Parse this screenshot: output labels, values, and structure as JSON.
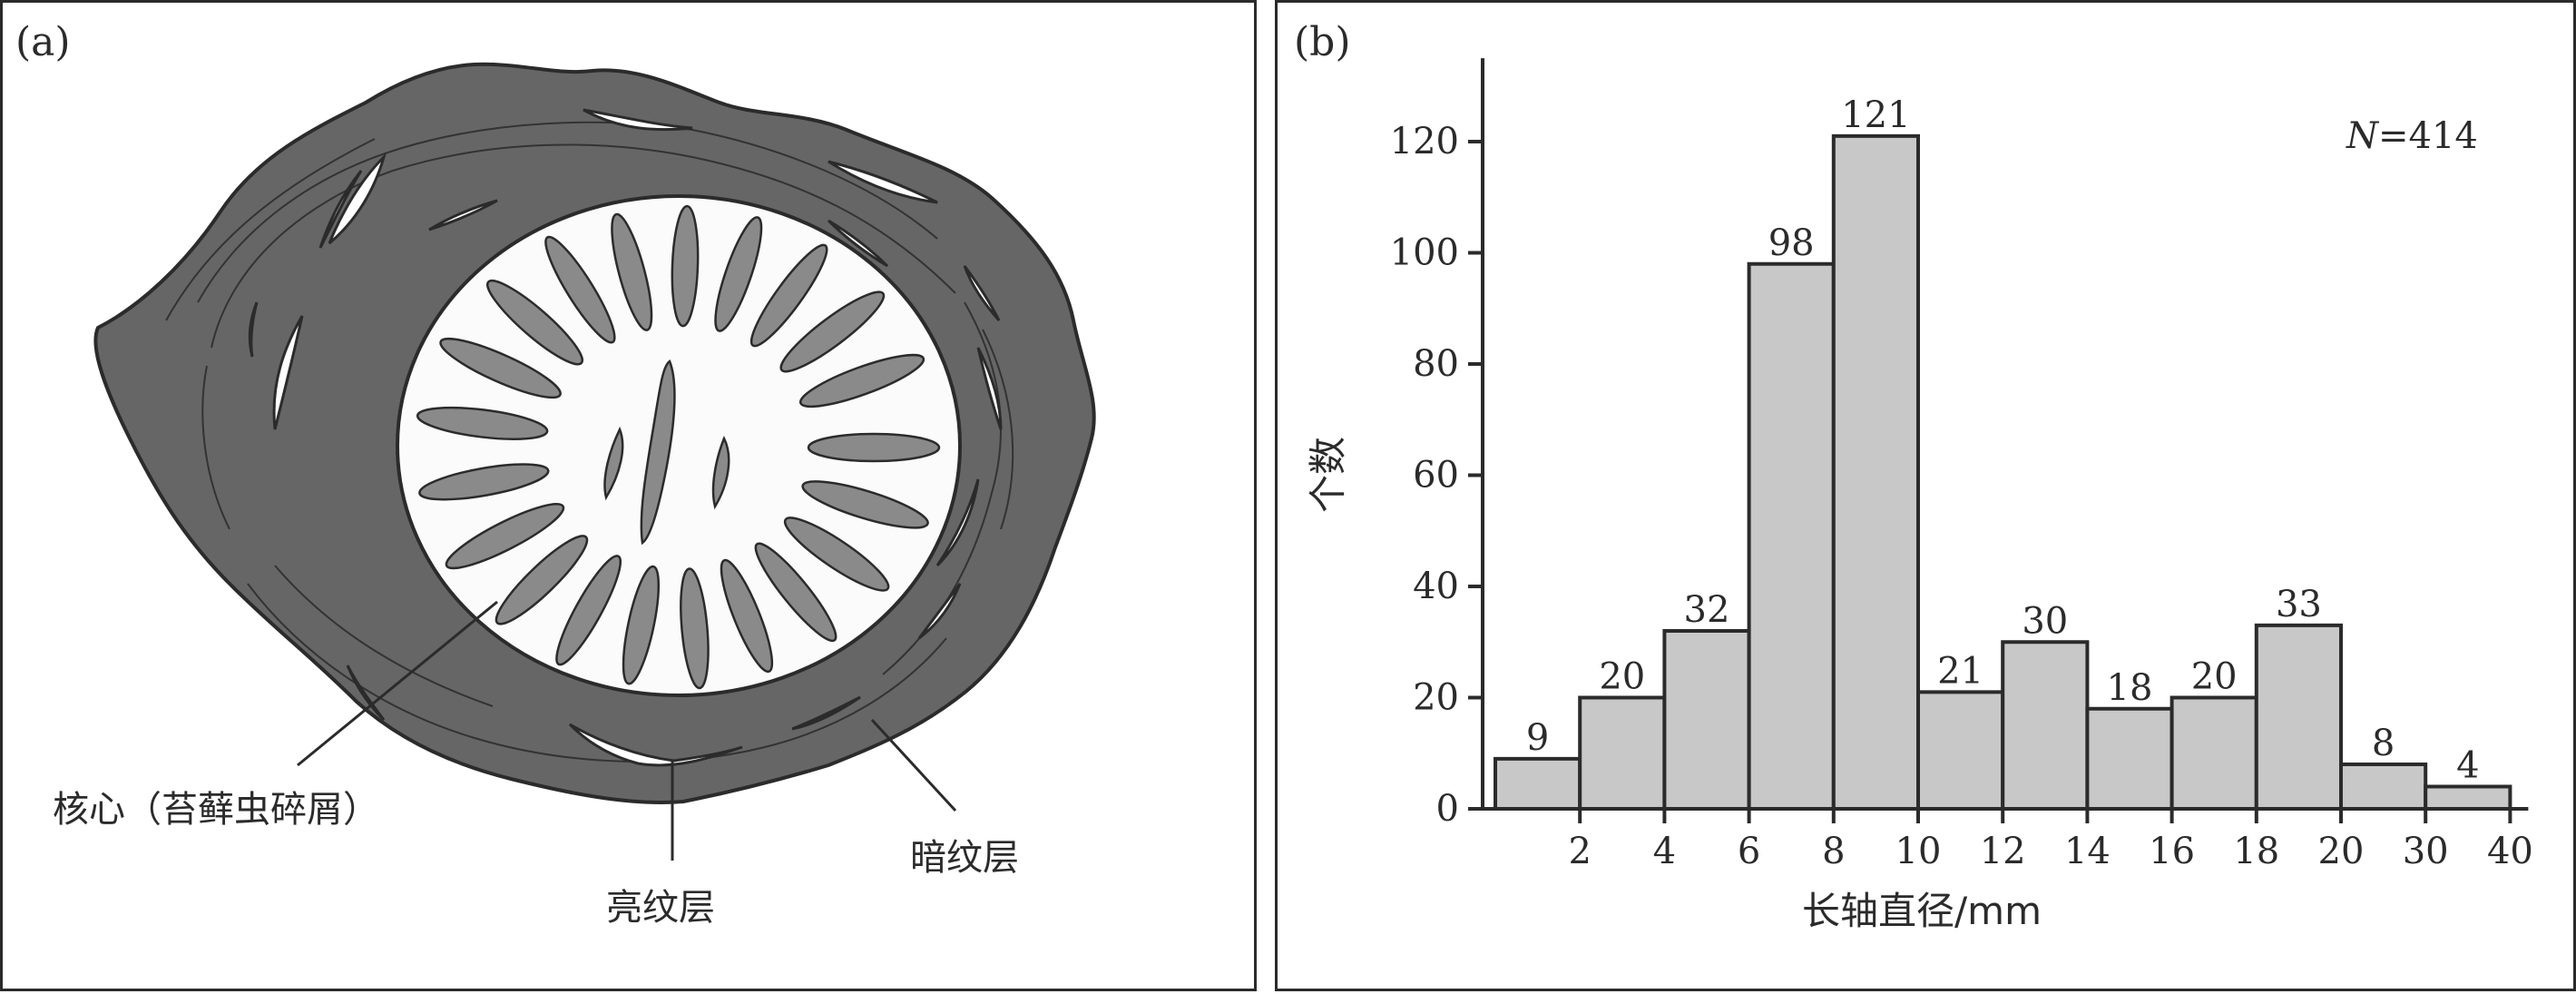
{
  "panel_a": {
    "label": "(a)",
    "callouts": {
      "core": "核心（苔藓虫碎屑）",
      "light_layer": "亮纹层",
      "dark_layer": "暗纹层"
    },
    "colors": {
      "dark_layer": "#666666",
      "core_fill": "#fbfbfb",
      "zooecia": "#8a8a8a",
      "outline": "#2b2b2b"
    }
  },
  "panel_b": {
    "label": "(b)",
    "annotation_italic": "N",
    "annotation_value": "=414"
  },
  "chart_data": {
    "type": "bar",
    "categories": [
      "0-2",
      "2-4",
      "4-6",
      "6-8",
      "8-10",
      "10-12",
      "12-14",
      "14-16",
      "16-18",
      "18-20",
      "20-30",
      "30-40"
    ],
    "values": [
      9,
      20,
      32,
      98,
      121,
      21,
      30,
      18,
      20,
      33,
      8,
      4
    ],
    "x_tick_labels": [
      "2",
      "4",
      "6",
      "8",
      "10",
      "12",
      "14",
      "16",
      "18",
      "20",
      "30",
      "40"
    ],
    "y_ticks": [
      "0",
      "20",
      "40",
      "60",
      "80",
      "100",
      "120"
    ],
    "ylim": [
      0,
      135
    ],
    "xlabel": "长轴直径/mm",
    "ylabel": "个数",
    "bar_color": "#c8c8c8",
    "grid": false
  }
}
